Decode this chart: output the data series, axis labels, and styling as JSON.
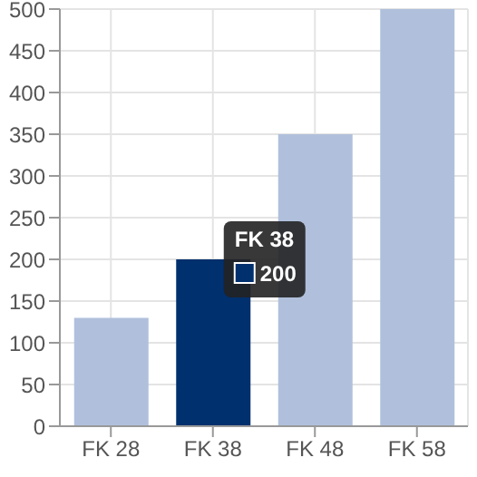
{
  "chart_data": {
    "type": "bar",
    "categories": [
      "FK 28",
      "FK 38",
      "FK 48",
      "FK 58"
    ],
    "values": [
      130,
      200,
      350,
      500
    ],
    "colors": [
      "#b0c0dc",
      "#00306e",
      "#b0c0dc",
      "#b0c0dc"
    ],
    "ylim": [
      0,
      500
    ],
    "yticks": [
      0,
      50,
      100,
      150,
      200,
      250,
      300,
      350,
      400,
      450,
      500
    ],
    "grid": true,
    "annotations": [
      {
        "text": "FK 38",
        "x": "FK 38",
        "y": 200
      },
      "200"
    ]
  }
}
